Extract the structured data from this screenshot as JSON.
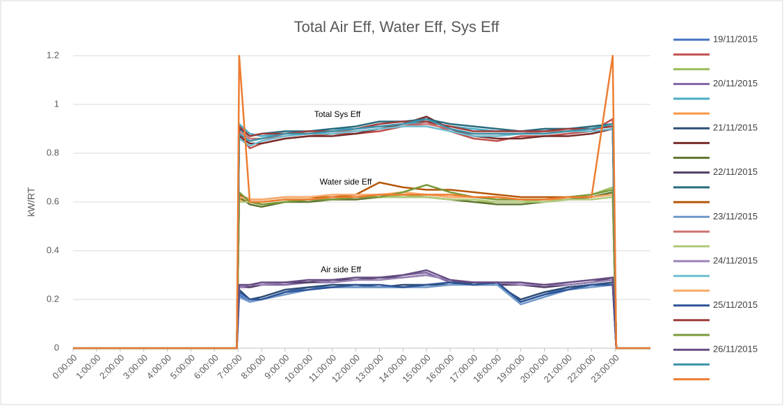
{
  "chart_data": {
    "type": "line",
    "title": "Total Air Eff, Water Eff, Sys Eff",
    "y_label": "kW/RT",
    "annotations": [
      "Total Sys Eff",
      "Water side Eff",
      "Air side Eff"
    ],
    "x": [
      0,
      6.95,
      7.05,
      7.5,
      8,
      9,
      10,
      11,
      12,
      13,
      14,
      15,
      16,
      17,
      18,
      19,
      20,
      21,
      22,
      22.9,
      23.05,
      24.5
    ],
    "xlim": [
      0,
      24.5
    ],
    "xticks": [
      {
        "value": 0,
        "label": "0:00:00"
      },
      {
        "value": 1,
        "label": "1:00:00"
      },
      {
        "value": 2,
        "label": "2:00:00"
      },
      {
        "value": 3,
        "label": "3:00:00"
      },
      {
        "value": 4,
        "label": "4:00:00"
      },
      {
        "value": 5,
        "label": "5:00:00"
      },
      {
        "value": 6,
        "label": "6:00:00"
      },
      {
        "value": 7,
        "label": "7:00:00"
      },
      {
        "value": 8,
        "label": "8:00:00"
      },
      {
        "value": 9,
        "label": "9:00:00"
      },
      {
        "value": 10,
        "label": "10:00:00"
      },
      {
        "value": 11,
        "label": "11:00:00"
      },
      {
        "value": 12,
        "label": "12:00:00"
      },
      {
        "value": 13,
        "label": "13:00:00"
      },
      {
        "value": 14,
        "label": "14:00:00"
      },
      {
        "value": 15,
        "label": "15:00:00"
      },
      {
        "value": 16,
        "label": "16:00:00"
      },
      {
        "value": 17,
        "label": "17:00:00"
      },
      {
        "value": 18,
        "label": "18:00:00"
      },
      {
        "value": 19,
        "label": "19:00:00"
      },
      {
        "value": 20,
        "label": "20:00:00"
      },
      {
        "value": 21,
        "label": "21:00:00"
      },
      {
        "value": 22,
        "label": "22:00:00"
      },
      {
        "value": 23,
        "label": "23:00:00"
      }
    ],
    "ylim": [
      0,
      1.2
    ],
    "yticks": [
      0,
      0.2,
      0.4,
      0.6,
      0.8,
      1,
      1.2
    ],
    "grid": true,
    "legend": "right",
    "series": [
      {
        "name": "19/11/2015",
        "color": "#4472c4",
        "values": [
          0,
          0,
          0.22,
          0.19,
          0.2,
          0.23,
          0.25,
          0.25,
          0.25,
          0.25,
          0.25,
          0.26,
          0.27,
          0.27,
          0.27,
          0.19,
          0.22,
          0.25,
          0.26,
          0.26,
          0,
          0
        ]
      },
      {
        "name": null,
        "color": "#c0504d",
        "values": [
          0,
          0,
          0.88,
          0.82,
          0.84,
          0.86,
          0.87,
          0.88,
          0.88,
          0.89,
          0.91,
          0.93,
          0.89,
          0.86,
          0.85,
          0.87,
          0.87,
          0.88,
          0.89,
          0.94,
          0,
          0
        ]
      },
      {
        "name": null,
        "color": "#9bbb59",
        "values": [
          0,
          0,
          0.63,
          0.6,
          0.59,
          0.6,
          0.61,
          0.61,
          0.61,
          0.62,
          0.63,
          0.62,
          0.61,
          0.6,
          0.6,
          0.6,
          0.61,
          0.62,
          0.63,
          0.66,
          0,
          0
        ]
      },
      {
        "name": "20/11/2015",
        "color": "#8064a2",
        "values": [
          0,
          0,
          0.25,
          0.25,
          0.26,
          0.26,
          0.27,
          0.27,
          0.28,
          0.29,
          0.3,
          0.31,
          0.27,
          0.26,
          0.27,
          0.26,
          0.26,
          0.26,
          0.27,
          0.28,
          0,
          0
        ]
      },
      {
        "name": null,
        "color": "#4bacc6",
        "values": [
          0,
          0,
          0.92,
          0.88,
          0.87,
          0.88,
          0.89,
          0.9,
          0.9,
          0.91,
          0.92,
          0.93,
          0.91,
          0.9,
          0.89,
          0.89,
          0.9,
          0.9,
          0.9,
          0.91,
          0,
          0
        ]
      },
      {
        "name": null,
        "color": "#f79646",
        "values": [
          0,
          0,
          0.61,
          0.6,
          0.6,
          0.61,
          0.61,
          0.62,
          0.62,
          0.63,
          0.63,
          0.63,
          0.62,
          0.62,
          0.61,
          0.61,
          0.61,
          0.61,
          0.62,
          0.63,
          0,
          0
        ]
      },
      {
        "name": "21/11/2015",
        "color": "#2c4d75",
        "values": [
          0,
          0,
          0.24,
          0.2,
          0.21,
          0.24,
          0.25,
          0.26,
          0.26,
          0.25,
          0.26,
          0.26,
          0.26,
          0.27,
          0.26,
          0.2,
          0.23,
          0.25,
          0.26,
          0.27,
          0,
          0
        ]
      },
      {
        "name": null,
        "color": "#772c2a",
        "values": [
          0,
          0,
          0.87,
          0.84,
          0.84,
          0.86,
          0.87,
          0.87,
          0.88,
          0.9,
          0.92,
          0.95,
          0.9,
          0.87,
          0.86,
          0.86,
          0.87,
          0.87,
          0.88,
          0.9,
          0,
          0
        ]
      },
      {
        "name": null,
        "color": "#5f7530",
        "values": [
          0,
          0,
          0.62,
          0.59,
          0.58,
          0.6,
          0.6,
          0.61,
          0.61,
          0.62,
          0.62,
          0.62,
          0.61,
          0.6,
          0.59,
          0.59,
          0.6,
          0.61,
          0.62,
          0.64,
          0,
          0
        ]
      },
      {
        "name": "22/11/2015",
        "color": "#4d3b62",
        "values": [
          0,
          0,
          0.26,
          0.25,
          0.26,
          0.27,
          0.27,
          0.28,
          0.28,
          0.29,
          0.29,
          0.3,
          0.28,
          0.26,
          0.26,
          0.26,
          0.25,
          0.26,
          0.27,
          0.29,
          0,
          0
        ]
      },
      {
        "name": null,
        "color": "#276a7c",
        "values": [
          0,
          0,
          0.9,
          0.87,
          0.88,
          0.89,
          0.89,
          0.9,
          0.91,
          0.93,
          0.93,
          0.94,
          0.92,
          0.91,
          0.9,
          0.89,
          0.9,
          0.9,
          0.91,
          0.92,
          0,
          0
        ]
      },
      {
        "name": null,
        "color": "#b65708",
        "values": [
          0,
          0,
          0.63,
          0.61,
          0.61,
          0.62,
          0.62,
          0.62,
          0.63,
          0.68,
          0.66,
          0.65,
          0.65,
          0.64,
          0.63,
          0.62,
          0.62,
          0.62,
          0.62,
          0.63,
          0,
          0
        ]
      },
      {
        "name": "23/11/2015",
        "color": "#729aca",
        "values": [
          0,
          0,
          0.21,
          0.19,
          0.2,
          0.22,
          0.24,
          0.25,
          0.25,
          0.25,
          0.25,
          0.25,
          0.26,
          0.26,
          0.26,
          0.18,
          0.21,
          0.24,
          0.25,
          0.26,
          0,
          0
        ]
      },
      {
        "name": null,
        "color": "#cd7371",
        "values": [
          0,
          0,
          0.89,
          0.86,
          0.86,
          0.87,
          0.88,
          0.89,
          0.89,
          0.9,
          0.91,
          0.92,
          0.9,
          0.88,
          0.88,
          0.88,
          0.89,
          0.89,
          0.9,
          0.91,
          0,
          0
        ]
      },
      {
        "name": null,
        "color": "#afc97a",
        "values": [
          0,
          0,
          0.6,
          0.6,
          0.6,
          0.61,
          0.61,
          0.61,
          0.62,
          0.62,
          0.62,
          0.62,
          0.61,
          0.61,
          0.6,
          0.6,
          0.6,
          0.61,
          0.61,
          0.62,
          0,
          0
        ]
      },
      {
        "name": "24/11/2015",
        "color": "#9983b5",
        "values": [
          0,
          0,
          0.25,
          0.26,
          0.26,
          0.27,
          0.28,
          0.27,
          0.28,
          0.28,
          0.29,
          0.3,
          0.28,
          0.27,
          0.27,
          0.26,
          0.26,
          0.26,
          0.27,
          0.28,
          0,
          0
        ]
      },
      {
        "name": null,
        "color": "#6fbdd1",
        "values": [
          0,
          0,
          0.86,
          0.83,
          0.85,
          0.87,
          0.88,
          0.88,
          0.89,
          0.9,
          0.91,
          0.91,
          0.89,
          0.87,
          0.87,
          0.88,
          0.88,
          0.89,
          0.89,
          0.9,
          0,
          0
        ]
      },
      {
        "name": null,
        "color": "#f9ab6b",
        "values": [
          0,
          0,
          0.62,
          0.61,
          0.61,
          0.62,
          0.62,
          0.63,
          0.63,
          0.63,
          0.64,
          0.63,
          0.62,
          0.62,
          0.62,
          0.61,
          0.61,
          0.62,
          0.62,
          0.63,
          0,
          0
        ]
      },
      {
        "name": "25/11/2015",
        "color": "#2f5597",
        "values": [
          0,
          0,
          0.23,
          0.2,
          0.2,
          0.23,
          0.24,
          0.25,
          0.26,
          0.26,
          0.25,
          0.26,
          0.27,
          0.26,
          0.27,
          0.19,
          0.22,
          0.24,
          0.26,
          0.26,
          0,
          0
        ]
      },
      {
        "name": null,
        "color": "#9e3b38",
        "values": [
          0,
          0,
          0.91,
          0.87,
          0.88,
          0.88,
          0.89,
          0.89,
          0.9,
          0.92,
          0.93,
          0.93,
          0.91,
          0.89,
          0.89,
          0.89,
          0.89,
          0.9,
          0.9,
          0.91,
          0,
          0
        ]
      },
      {
        "name": null,
        "color": "#7a9a3a",
        "values": [
          0,
          0,
          0.64,
          0.6,
          0.59,
          0.6,
          0.61,
          0.61,
          0.62,
          0.62,
          0.64,
          0.67,
          0.64,
          0.62,
          0.61,
          0.61,
          0.61,
          0.62,
          0.63,
          0.65,
          0,
          0
        ]
      },
      {
        "name": "26/11/2015",
        "color": "#664d83",
        "values": [
          0,
          0,
          0.26,
          0.26,
          0.27,
          0.27,
          0.28,
          0.28,
          0.29,
          0.29,
          0.3,
          0.32,
          0.28,
          0.27,
          0.27,
          0.27,
          0.26,
          0.27,
          0.28,
          0.29,
          0,
          0
        ]
      },
      {
        "name": null,
        "color": "#3c91a8",
        "values": [
          0,
          0,
          0.88,
          0.85,
          0.86,
          0.88,
          0.88,
          0.89,
          0.9,
          0.91,
          0.92,
          0.94,
          0.9,
          0.88,
          0.88,
          0.88,
          0.88,
          0.89,
          0.9,
          0.92,
          0,
          0
        ]
      },
      {
        "name": null,
        "color": "#ed7d31",
        "values": [
          0,
          0,
          1.2,
          0.6,
          0.6,
          0.61,
          0.61,
          0.62,
          0.62,
          0.63,
          0.63,
          0.63,
          0.63,
          0.62,
          0.62,
          0.61,
          0.61,
          0.62,
          0.62,
          1.2,
          0,
          0
        ]
      }
    ]
  }
}
